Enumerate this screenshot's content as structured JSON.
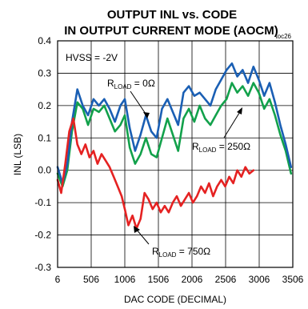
{
  "chart_data": {
    "type": "line",
    "title_line1": "OUTPUT INL vs. CODE",
    "title_line2": "IN OUTPUT CURRENT MODE (AOCM)",
    "figure_tag": "toc26",
    "xlabel": "DAC CODE (DECIMAL)",
    "ylabel": "INL (LSB)",
    "xlim": [
      6,
      3506
    ],
    "ylim": [
      -0.3,
      0.4
    ],
    "x_ticks": [
      "6",
      "506",
      "1006",
      "1506",
      "2006",
      "2506",
      "3006",
      "3506"
    ],
    "y_ticks": [
      "0.4",
      "0.3",
      "0.2",
      "0.1",
      "0.0",
      "-0.1",
      "-0.2",
      "-0.3"
    ],
    "condition": "HVSS = -2V",
    "series": [
      {
        "label_main": "R",
        "label_sub": "LOAD",
        "label_value": " = 0Ω",
        "color": "#1a5fb4",
        "x": [
          6,
          80,
          150,
          220,
          300,
          380,
          460,
          540,
          620,
          700,
          780,
          860,
          940,
          1006,
          1080,
          1160,
          1240,
          1320,
          1400,
          1480,
          1560,
          1640,
          1720,
          1800,
          1880,
          1960,
          2040,
          2120,
          2200,
          2280,
          2360,
          2440,
          2520,
          2600,
          2680,
          2760,
          2840,
          2920,
          3000,
          3080,
          3160,
          3240,
          3320,
          3400,
          3480
        ],
        "y": [
          0.01,
          -0.04,
          0.02,
          0.15,
          0.25,
          0.2,
          0.17,
          0.22,
          0.2,
          0.22,
          0.19,
          0.15,
          0.2,
          0.22,
          0.13,
          0.06,
          0.11,
          0.17,
          0.12,
          0.1,
          0.19,
          0.22,
          0.18,
          0.14,
          0.24,
          0.26,
          0.23,
          0.24,
          0.22,
          0.2,
          0.25,
          0.28,
          0.31,
          0.33,
          0.29,
          0.31,
          0.27,
          0.32,
          0.28,
          0.23,
          0.27,
          0.21,
          0.14,
          0.08,
          0.01
        ]
      },
      {
        "label_main": "R",
        "label_sub": "LOAD",
        "label_value": " = 250Ω",
        "color": "#12a14b",
        "x": [
          6,
          80,
          150,
          220,
          300,
          380,
          460,
          540,
          620,
          700,
          780,
          860,
          940,
          1006,
          1080,
          1160,
          1240,
          1320,
          1400,
          1480,
          1560,
          1640,
          1720,
          1800,
          1880,
          1960,
          2040,
          2120,
          2200,
          2280,
          2360,
          2440,
          2520,
          2600,
          2680,
          2760,
          2840,
          2920,
          3000,
          3080,
          3160,
          3240,
          3320,
          3400,
          3480
        ],
        "y": [
          -0.01,
          -0.05,
          0.0,
          0.12,
          0.21,
          0.19,
          0.14,
          0.19,
          0.18,
          0.2,
          0.16,
          0.12,
          0.14,
          0.17,
          0.07,
          0.02,
          0.05,
          0.1,
          0.05,
          0.04,
          0.1,
          0.16,
          0.11,
          0.06,
          0.16,
          0.19,
          0.15,
          0.2,
          0.16,
          0.14,
          0.17,
          0.2,
          0.22,
          0.27,
          0.24,
          0.26,
          0.23,
          0.27,
          0.24,
          0.19,
          0.22,
          0.17,
          0.11,
          0.06,
          -0.01
        ]
      },
      {
        "label_main": "R",
        "label_sub": "LOAD",
        "label_value": " = 750Ω",
        "color": "#e52222",
        "x": [
          6,
          60,
          120,
          180,
          240,
          300,
          360,
          420,
          480,
          540,
          600,
          660,
          720,
          780,
          840,
          900,
          960,
          1006,
          1060,
          1120,
          1180,
          1240,
          1300,
          1360,
          1420,
          1480,
          1540,
          1600,
          1660,
          1720,
          1780,
          1840,
          1900,
          1960,
          2020,
          2080,
          2140,
          2200,
          2260,
          2320,
          2380,
          2440,
          2500,
          2560,
          2620,
          2680,
          2740,
          2800,
          2860,
          2920
        ],
        "y": [
          -0.03,
          -0.07,
          0.02,
          0.12,
          0.16,
          0.08,
          0.05,
          0.08,
          0.04,
          0.06,
          0.02,
          0.05,
          0.03,
          0.01,
          -0.02,
          -0.05,
          -0.08,
          -0.12,
          -0.17,
          -0.14,
          -0.18,
          -0.15,
          -0.07,
          -0.09,
          -0.12,
          -0.1,
          -0.13,
          -0.11,
          -0.13,
          -0.1,
          -0.08,
          -0.11,
          -0.09,
          -0.07,
          -0.1,
          -0.08,
          -0.05,
          -0.07,
          -0.04,
          -0.08,
          -0.05,
          -0.03,
          -0.05,
          -0.02,
          -0.04,
          0.0,
          -0.02,
          0.01,
          -0.01,
          0.0
        ]
      }
    ]
  }
}
